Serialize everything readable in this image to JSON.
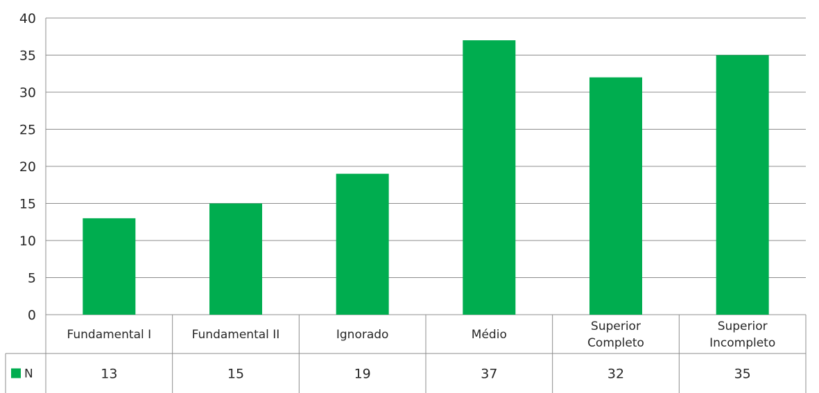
{
  "chart_data": {
    "type": "bar",
    "categories": [
      [
        "Fundamental I"
      ],
      [
        "Fundamental II"
      ],
      [
        "Ignorado"
      ],
      [
        "Médio"
      ],
      [
        "Superior",
        "Completo"
      ],
      [
        "Superior",
        "Incompleto"
      ]
    ],
    "series": [
      {
        "name": "N",
        "values": [
          13,
          15,
          19,
          37,
          32,
          35
        ],
        "color": "#00AD4F"
      }
    ],
    "ylim": [
      0,
      40
    ],
    "yticks": [
      0,
      5,
      10,
      15,
      20,
      25,
      30,
      35,
      40
    ],
    "grid": true,
    "legend": "data-table",
    "title": "",
    "xlabel": "",
    "ylabel": ""
  }
}
